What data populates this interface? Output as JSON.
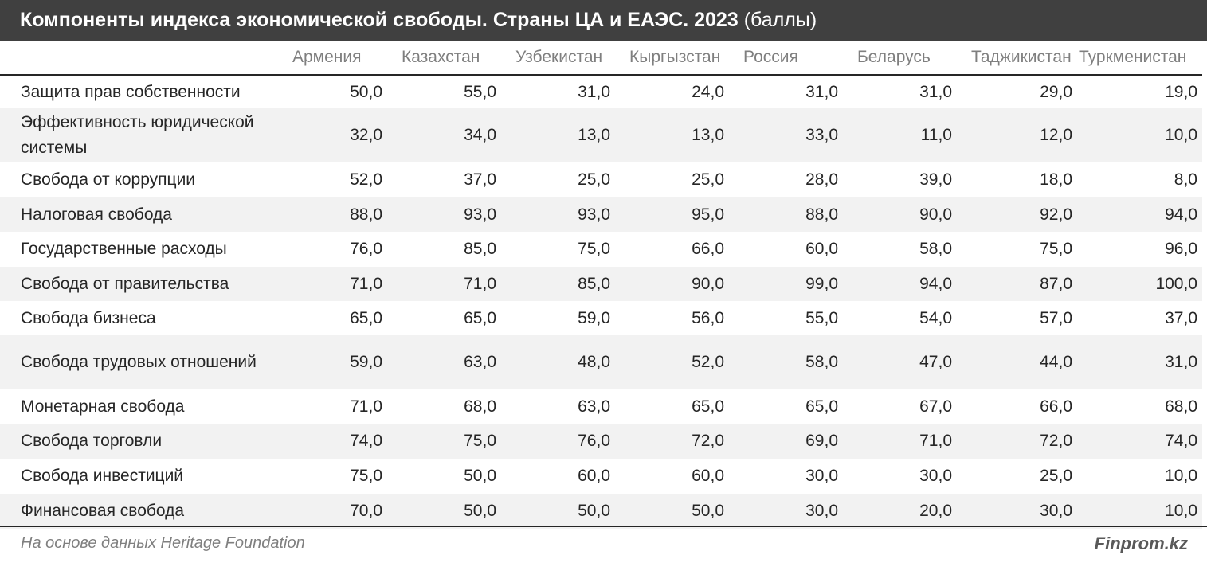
{
  "title": {
    "main": "Компоненты индекса экономической свободы. Страны ЦА и ЕАЭС. 2023",
    "sub": "(баллы)"
  },
  "chart_data": {
    "type": "table",
    "columns": [
      "Армения",
      "Казахстан",
      "Узбекистан",
      "Кыргызстан",
      "Россия",
      "Беларусь",
      "Таджикистан",
      "Туркменистан"
    ],
    "rows": [
      {
        "label": "Защита прав собственности",
        "values": [
          "50,0",
          "55,0",
          "31,0",
          "24,0",
          "31,0",
          "31,0",
          "29,0",
          "19,0"
        ]
      },
      {
        "label": "Эффективность юридической системы",
        "values": [
          "32,0",
          "34,0",
          "13,0",
          "13,0",
          "33,0",
          "11,0",
          "12,0",
          "10,0"
        ]
      },
      {
        "label": "Свобода от коррупции",
        "values": [
          "52,0",
          "37,0",
          "25,0",
          "25,0",
          "28,0",
          "39,0",
          "18,0",
          "8,0"
        ]
      },
      {
        "label": "Налоговая свобода",
        "values": [
          "88,0",
          "93,0",
          "93,0",
          "95,0",
          "88,0",
          "90,0",
          "92,0",
          "94,0"
        ]
      },
      {
        "label": "Государственные расходы",
        "values": [
          "76,0",
          "85,0",
          "75,0",
          "66,0",
          "60,0",
          "58,0",
          "75,0",
          "96,0"
        ]
      },
      {
        "label": "Свобода от правительства",
        "values": [
          "71,0",
          "71,0",
          "85,0",
          "90,0",
          "99,0",
          "94,0",
          "87,0",
          "100,0"
        ]
      },
      {
        "label": "Свобода бизнеса",
        "values": [
          "65,0",
          "65,0",
          "59,0",
          "56,0",
          "55,0",
          "54,0",
          "57,0",
          "37,0"
        ]
      },
      {
        "label": "Свобода трудовых отношений",
        "values": [
          "59,0",
          "63,0",
          "48,0",
          "52,0",
          "58,0",
          "47,0",
          "44,0",
          "31,0"
        ]
      },
      {
        "label": "Монетарная свобода",
        "values": [
          "71,0",
          "68,0",
          "63,0",
          "65,0",
          "65,0",
          "67,0",
          "66,0",
          "68,0"
        ]
      },
      {
        "label": "Свобода торговли",
        "values": [
          "74,0",
          "75,0",
          "76,0",
          "72,0",
          "69,0",
          "71,0",
          "72,0",
          "74,0"
        ]
      },
      {
        "label": "Свобода инвестиций",
        "values": [
          "75,0",
          "50,0",
          "60,0",
          "60,0",
          "30,0",
          "30,0",
          "25,0",
          "10,0"
        ]
      },
      {
        "label": "Финансовая свобода",
        "values": [
          "70,0",
          "50,0",
          "50,0",
          "50,0",
          "30,0",
          "20,0",
          "30,0",
          "10,0"
        ]
      }
    ]
  },
  "footer": {
    "source": "На основе данных Heritage Foundation",
    "brand": "Finprom.kz"
  },
  "colors": {
    "title_bg": "#404040",
    "row_shade": "#f2f2f2",
    "header_text": "#7f7f7f",
    "body_text": "#262626"
  }
}
